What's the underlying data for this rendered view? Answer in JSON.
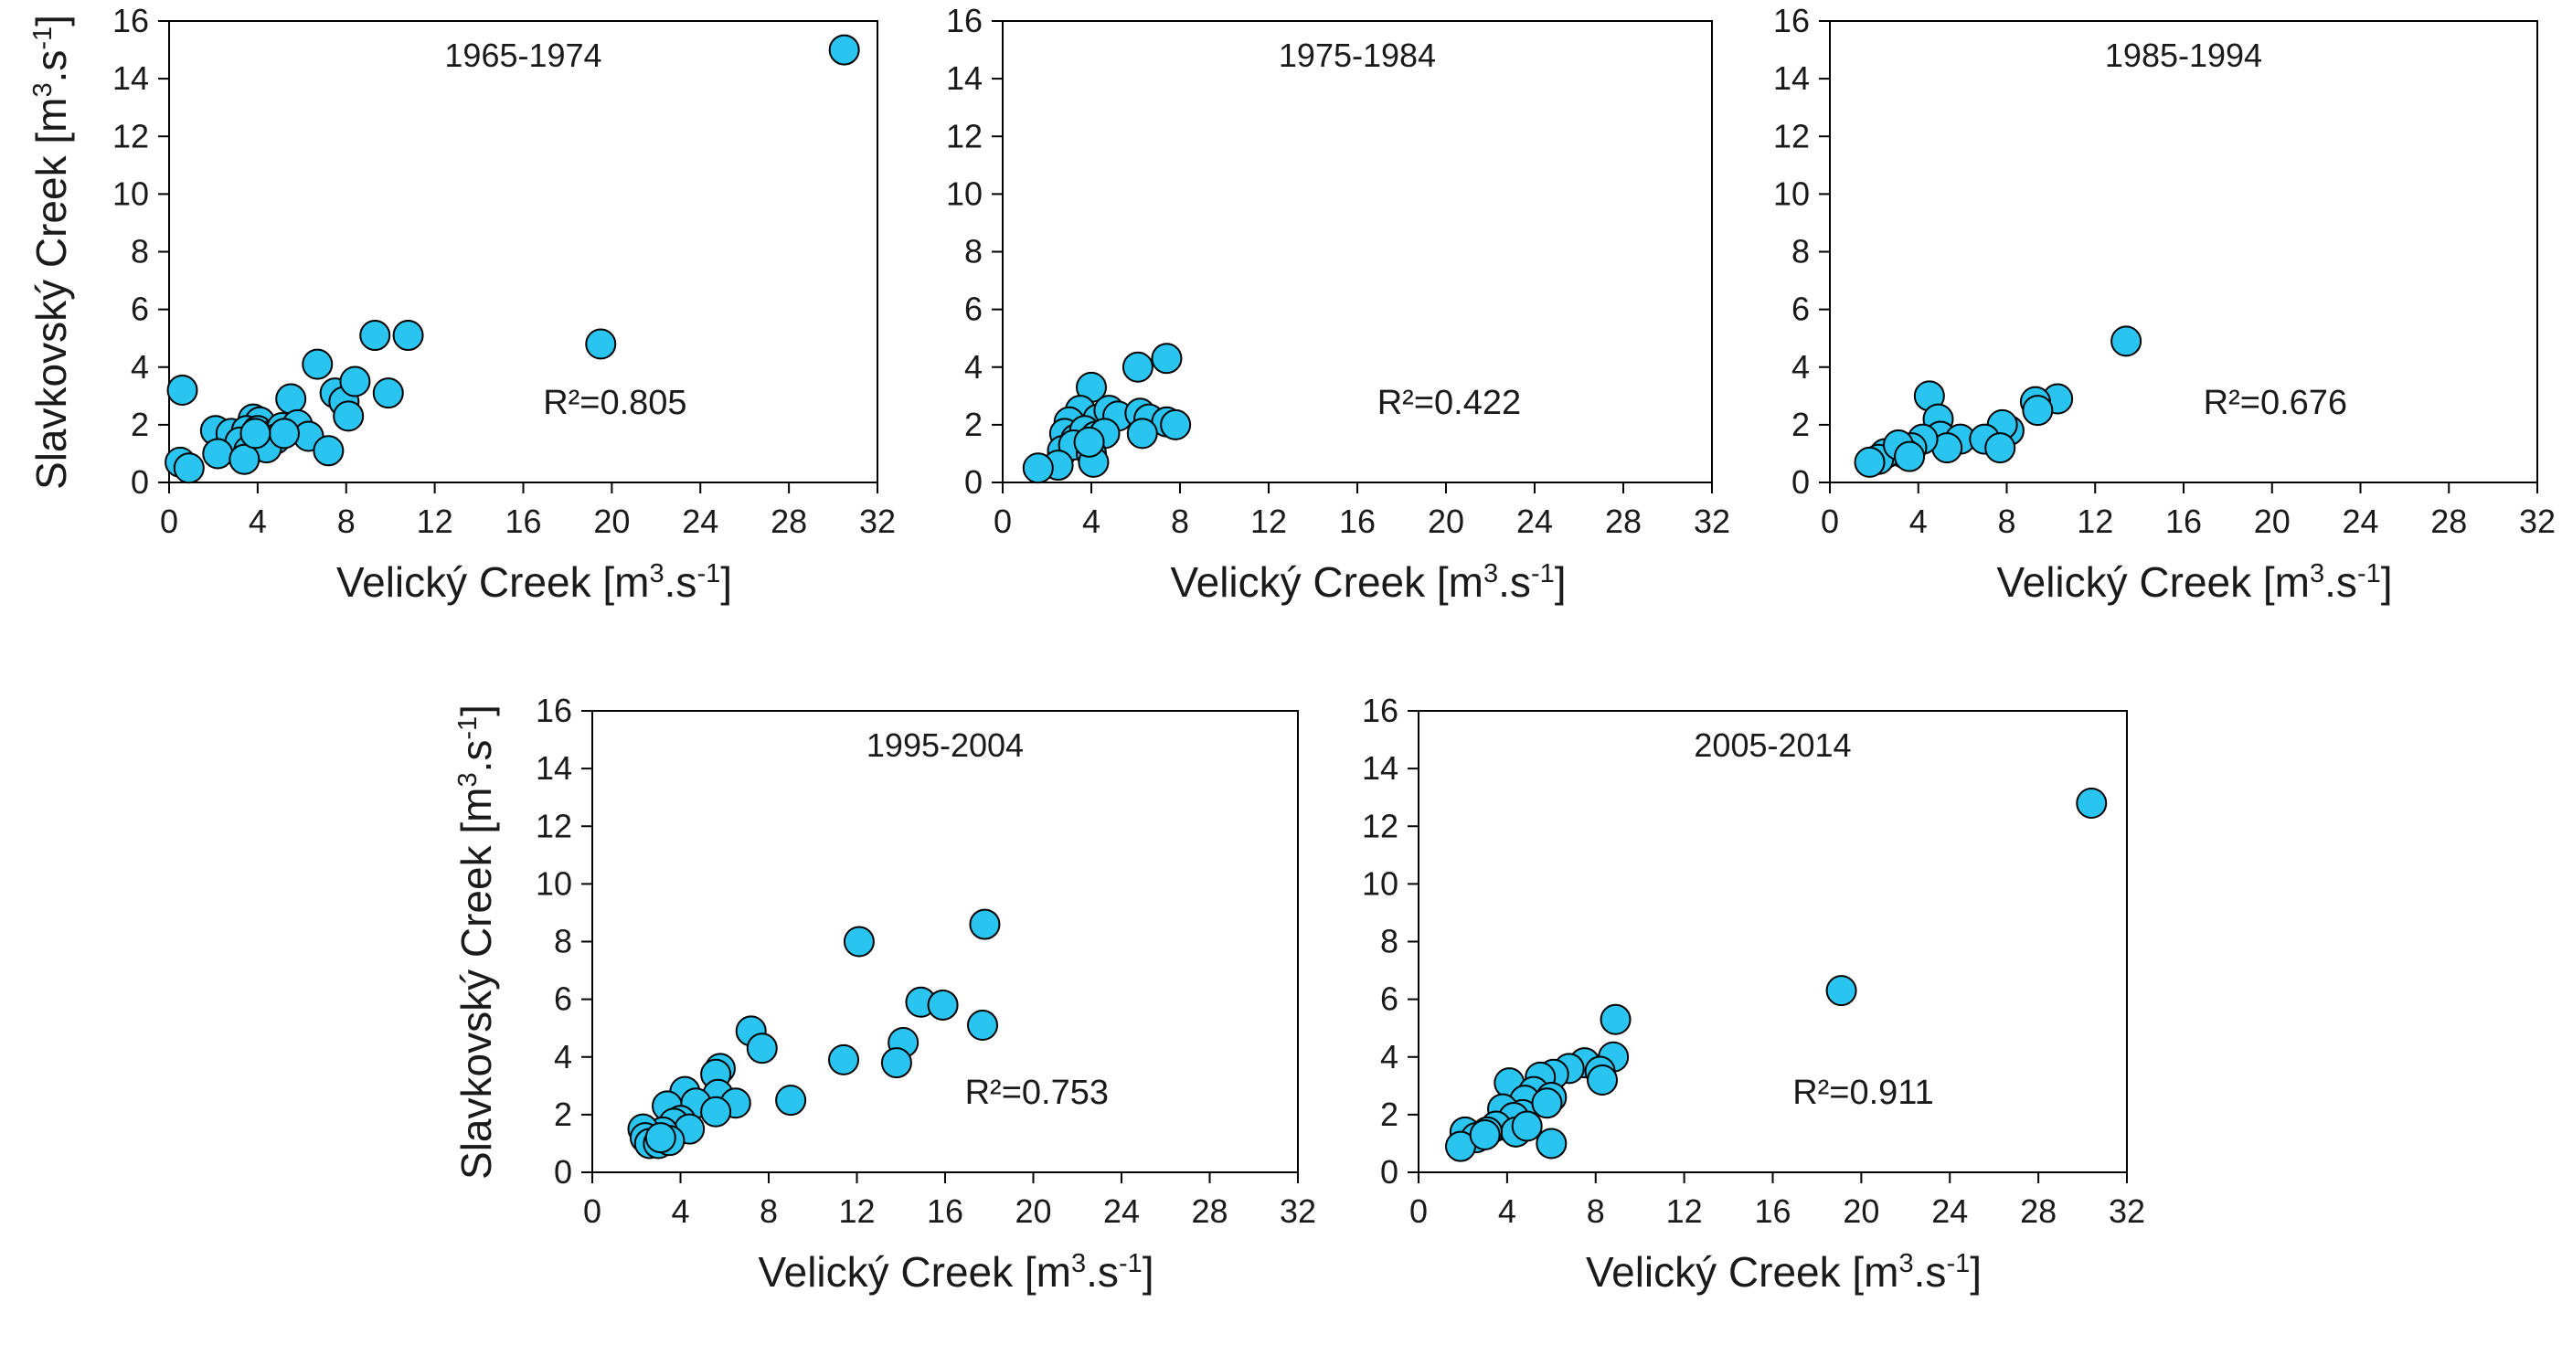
{
  "figure": {
    "y_label": "Slavkovský Creek",
    "x_label": "Velický Creek",
    "unit_open": "[m",
    "unit_exp": "3",
    "unit_mid": ".s",
    "unit_neg": "-1",
    "unit_close": "]",
    "point_color": "#29c5f0",
    "point_stroke": "#000000"
  },
  "chart_data": [
    {
      "type": "scatter",
      "title": "1965-1974",
      "xlabel": "Velický Creek [m3.s-1]",
      "ylabel": "Slavkovský Creek [m3.s-1]",
      "xlim": [
        0,
        32
      ],
      "ylim": [
        0,
        16
      ],
      "xticks": [
        0,
        4,
        8,
        12,
        16,
        20,
        24,
        28,
        32
      ],
      "yticks": [
        0,
        2,
        4,
        6,
        8,
        10,
        12,
        14,
        16
      ],
      "r2_label": "R²=0.805",
      "grid": false,
      "points": [
        [
          30.5,
          15.0
        ],
        [
          19.5,
          4.8
        ],
        [
          10.8,
          5.1
        ],
        [
          9.3,
          5.1
        ],
        [
          6.7,
          4.1
        ],
        [
          9.9,
          3.1
        ],
        [
          7.5,
          3.1
        ],
        [
          5.5,
          2.9
        ],
        [
          7.9,
          2.8
        ],
        [
          8.4,
          3.5
        ],
        [
          0.6,
          3.2
        ],
        [
          8.1,
          2.3
        ],
        [
          3.8,
          2.2
        ],
        [
          4.1,
          2.1
        ],
        [
          2.1,
          1.8
        ],
        [
          2.8,
          1.7
        ],
        [
          3.5,
          1.8
        ],
        [
          4.0,
          1.8
        ],
        [
          4.5,
          1.6
        ],
        [
          5.1,
          1.9
        ],
        [
          5.8,
          2.0
        ],
        [
          6.3,
          1.6
        ],
        [
          4.8,
          1.5
        ],
        [
          3.2,
          1.4
        ],
        [
          2.2,
          1.0
        ],
        [
          3.6,
          1.1
        ],
        [
          4.4,
          1.2
        ],
        [
          5.2,
          1.7
        ],
        [
          7.2,
          1.1
        ],
        [
          3.4,
          0.8
        ],
        [
          0.5,
          0.7
        ],
        [
          0.9,
          0.5
        ],
        [
          3.9,
          1.7
        ]
      ]
    },
    {
      "type": "scatter",
      "title": "1975-1984",
      "xlabel": "Velický Creek [m3.s-1]",
      "ylabel": "",
      "xlim": [
        0,
        32
      ],
      "ylim": [
        0,
        16
      ],
      "xticks": [
        0,
        4,
        8,
        12,
        16,
        20,
        24,
        28,
        32
      ],
      "yticks": [
        0,
        2,
        4,
        6,
        8,
        10,
        12,
        14,
        16
      ],
      "r2_label": "R²=0.422",
      "grid": false,
      "points": [
        [
          7.4,
          4.3
        ],
        [
          6.1,
          4.0
        ],
        [
          4.0,
          3.3
        ],
        [
          3.5,
          2.5
        ],
        [
          3.0,
          2.1
        ],
        [
          4.3,
          2.2
        ],
        [
          4.8,
          2.5
        ],
        [
          5.2,
          2.3
        ],
        [
          6.2,
          2.4
        ],
        [
          6.6,
          2.2
        ],
        [
          7.4,
          2.1
        ],
        [
          7.8,
          2.0
        ],
        [
          2.8,
          1.7
        ],
        [
          3.3,
          1.5
        ],
        [
          3.7,
          1.8
        ],
        [
          4.2,
          1.6
        ],
        [
          4.6,
          1.7
        ],
        [
          6.3,
          1.7
        ],
        [
          2.7,
          1.1
        ],
        [
          3.2,
          1.3
        ],
        [
          4.0,
          1.0
        ],
        [
          4.1,
          0.7
        ],
        [
          2.5,
          0.6
        ],
        [
          1.6,
          0.5
        ],
        [
          3.9,
          1.4
        ]
      ]
    },
    {
      "type": "scatter",
      "title": "1985-1994",
      "xlabel": "Velický Creek [m3.s-1]",
      "ylabel": "",
      "xlim": [
        0,
        32
      ],
      "ylim": [
        0,
        16
      ],
      "xticks": [
        0,
        4,
        8,
        12,
        16,
        20,
        24,
        28,
        32
      ],
      "yticks": [
        0,
        2,
        4,
        6,
        8,
        10,
        12,
        14,
        16
      ],
      "r2_label": "R²=0.676",
      "grid": false,
      "points": [
        [
          13.4,
          4.9
        ],
        [
          10.3,
          2.9
        ],
        [
          9.3,
          2.8
        ],
        [
          9.4,
          2.5
        ],
        [
          4.5,
          3.0
        ],
        [
          4.9,
          2.2
        ],
        [
          5.0,
          1.6
        ],
        [
          8.1,
          1.8
        ],
        [
          7.8,
          2.0
        ],
        [
          5.9,
          1.5
        ],
        [
          7.0,
          1.5
        ],
        [
          5.3,
          1.2
        ],
        [
          7.7,
          1.2
        ],
        [
          4.2,
          1.5
        ],
        [
          3.7,
          1.2
        ],
        [
          3.4,
          1.0
        ],
        [
          3.0,
          1.1
        ],
        [
          2.5,
          1.0
        ],
        [
          2.2,
          0.8
        ],
        [
          1.8,
          0.7
        ],
        [
          3.1,
          1.3
        ],
        [
          3.6,
          0.9
        ]
      ]
    },
    {
      "type": "scatter",
      "title": "1995-2004",
      "xlabel": "Velický Creek [m3.s-1]",
      "ylabel": "Slavkovský Creek [m3.s-1]",
      "xlim": [
        0,
        32
      ],
      "ylim": [
        0,
        16
      ],
      "xticks": [
        0,
        4,
        8,
        12,
        16,
        20,
        24,
        28,
        32
      ],
      "yticks": [
        0,
        2,
        4,
        6,
        8,
        10,
        12,
        14,
        16
      ],
      "r2_label": "R²=0.753",
      "grid": false,
      "points": [
        [
          17.8,
          8.6
        ],
        [
          12.1,
          8.0
        ],
        [
          14.9,
          5.9
        ],
        [
          15.9,
          5.8
        ],
        [
          17.7,
          5.1
        ],
        [
          7.2,
          4.9
        ],
        [
          7.7,
          4.3
        ],
        [
          14.1,
          4.5
        ],
        [
          11.4,
          3.9
        ],
        [
          13.8,
          3.8
        ],
        [
          5.8,
          3.6
        ],
        [
          5.6,
          3.4
        ],
        [
          4.2,
          2.8
        ],
        [
          5.7,
          2.7
        ],
        [
          3.4,
          2.3
        ],
        [
          4.7,
          2.4
        ],
        [
          6.5,
          2.4
        ],
        [
          9.0,
          2.5
        ],
        [
          5.6,
          2.1
        ],
        [
          4.0,
          1.8
        ],
        [
          3.7,
          1.7
        ],
        [
          4.4,
          1.5
        ],
        [
          3.2,
          1.4
        ],
        [
          2.3,
          1.5
        ],
        [
          2.4,
          1.2
        ],
        [
          2.6,
          1.0
        ],
        [
          3.0,
          1.0
        ],
        [
          3.5,
          1.1
        ],
        [
          3.1,
          1.2
        ]
      ]
    },
    {
      "type": "scatter",
      "title": "2005-2014",
      "xlabel": "Velický Creek [m3.s-1]",
      "ylabel": "",
      "xlim": [
        0,
        32
      ],
      "ylim": [
        0,
        16
      ],
      "xticks": [
        0,
        4,
        8,
        12,
        16,
        20,
        24,
        28,
        32
      ],
      "yticks": [
        0,
        2,
        4,
        6,
        8,
        10,
        12,
        14,
        16
      ],
      "r2_label": "R²=0.911",
      "grid": false,
      "points": [
        [
          30.4,
          12.8
        ],
        [
          19.1,
          6.3
        ],
        [
          8.9,
          5.3
        ],
        [
          8.8,
          4.0
        ],
        [
          7.5,
          3.8
        ],
        [
          8.2,
          3.5
        ],
        [
          6.8,
          3.6
        ],
        [
          6.1,
          3.4
        ],
        [
          5.5,
          3.3
        ],
        [
          8.3,
          3.2
        ],
        [
          4.1,
          3.1
        ],
        [
          5.2,
          2.8
        ],
        [
          4.8,
          2.5
        ],
        [
          6.0,
          2.6
        ],
        [
          4.7,
          2.0
        ],
        [
          5.8,
          2.4
        ],
        [
          3.8,
          2.2
        ],
        [
          4.3,
          1.9
        ],
        [
          3.5,
          1.6
        ],
        [
          4.4,
          1.4
        ],
        [
          3.1,
          1.4
        ],
        [
          2.1,
          1.4
        ],
        [
          2.6,
          1.2
        ],
        [
          4.9,
          1.6
        ],
        [
          6.0,
          1.0
        ],
        [
          1.9,
          0.9
        ],
        [
          3.0,
          1.3
        ]
      ]
    }
  ]
}
